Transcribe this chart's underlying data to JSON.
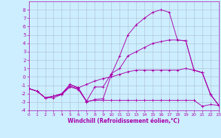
{
  "xlabel": "Windchill (Refroidissement éolien,°C)",
  "bg_color": "#cceeff",
  "grid_color": "#aabbcc",
  "line_color": "#aa00aa",
  "xlim": [
    0,
    23
  ],
  "ylim": [
    -4,
    9
  ],
  "xticks": [
    0,
    1,
    2,
    3,
    4,
    5,
    6,
    7,
    8,
    9,
    10,
    11,
    12,
    13,
    14,
    15,
    16,
    17,
    18,
    19,
    20,
    21,
    22,
    23
  ],
  "yticks": [
    -4,
    -3,
    -2,
    -1,
    0,
    1,
    2,
    3,
    4,
    5,
    6,
    7,
    8
  ],
  "series": [
    {
      "x": [
        0,
        1,
        2,
        3,
        4,
        5,
        6,
        7,
        8,
        9,
        10,
        11,
        12,
        13,
        14,
        15,
        16,
        17,
        18,
        19,
        20,
        21,
        22,
        23
      ],
      "y": [
        -1.4,
        -1.7,
        -2.5,
        -2.5,
        -2.1,
        -1.2,
        -1.5,
        -2.9,
        -2.8,
        -2.8,
        -2.8,
        -2.8,
        -2.8,
        -2.8,
        -2.8,
        -2.8,
        -2.8,
        -2.8,
        -2.8,
        -2.8,
        -2.8,
        -3.5,
        -3.3,
        -3.4
      ]
    },
    {
      "x": [
        0,
        1,
        2,
        3,
        4,
        5,
        6,
        7,
        8,
        9,
        10,
        11,
        12,
        13,
        14,
        15,
        16,
        17,
        18,
        19,
        20,
        21,
        22,
        23
      ],
      "y": [
        -1.4,
        -1.7,
        -2.5,
        -2.3,
        -2.1,
        -1.1,
        -1.4,
        -3.0,
        -2.7,
        -2.6,
        0.3,
        2.5,
        5.0,
        6.2,
        7.0,
        7.7,
        8.0,
        7.7,
        4.4,
        4.3,
        0.8,
        0.5,
        -2.1,
        -3.4
      ]
    },
    {
      "x": [
        0,
        1,
        2,
        3,
        4,
        5,
        6,
        7,
        8,
        9,
        10,
        11,
        12,
        13,
        14,
        15,
        16,
        17,
        18,
        19,
        20,
        21,
        22,
        23
      ],
      "y": [
        -1.4,
        -1.7,
        -2.5,
        -2.3,
        -2.0,
        -0.9,
        -1.3,
        -2.9,
        -1.2,
        -1.2,
        0.4,
        1.0,
        2.5,
        3.0,
        3.5,
        4.0,
        4.2,
        4.4,
        4.4,
        4.3,
        0.8,
        0.5,
        -2.1,
        -3.4
      ]
    },
    {
      "x": [
        0,
        1,
        2,
        3,
        4,
        5,
        6,
        7,
        8,
        9,
        10,
        11,
        12,
        13,
        14,
        15,
        16,
        17,
        18,
        19,
        20,
        21,
        22,
        23
      ],
      "y": [
        -1.4,
        -1.7,
        -2.5,
        -2.3,
        -2.0,
        -0.9,
        -1.3,
        -0.9,
        -0.5,
        -0.2,
        0.0,
        0.3,
        0.6,
        0.8,
        0.8,
        0.8,
        0.8,
        0.8,
        0.8,
        1.0,
        0.8,
        0.5,
        -2.1,
        -3.4
      ]
    }
  ]
}
